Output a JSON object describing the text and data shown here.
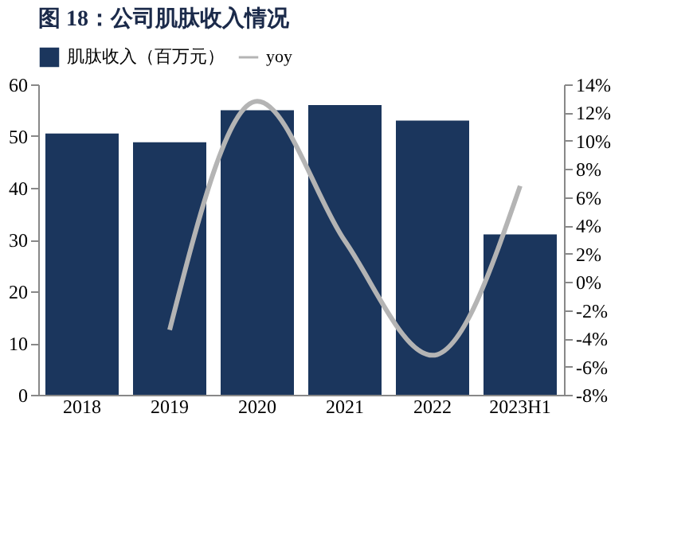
{
  "chart_data": {
    "type": "bar",
    "title": "图 18：公司肌肽收入情况",
    "categories": [
      "2018",
      "2019",
      "2020",
      "2021",
      "2022",
      "2023H1"
    ],
    "series": [
      {
        "name": "肌肽收入（百万元）",
        "color": "#1b365d",
        "values": [
          50.5,
          48.8,
          55,
          56,
          53,
          31
        ]
      },
      {
        "name": "yoy",
        "type": "line",
        "axis": "y2",
        "color": "#b4b4b4",
        "values": [
          null,
          -3.4,
          12.8,
          2.9,
          -5.2,
          6.8
        ]
      }
    ],
    "ylim": [
      0,
      60
    ],
    "yticks": [
      0,
      10,
      20,
      30,
      40,
      50,
      60
    ],
    "y2lim": [
      -8,
      14
    ],
    "y2ticks": [
      {
        "value": -8,
        "label": "-8%"
      },
      {
        "value": -6,
        "label": "-6%"
      },
      {
        "value": -4,
        "label": "-4%"
      },
      {
        "value": -2,
        "label": "-2%"
      },
      {
        "value": 0,
        "label": "0%"
      },
      {
        "value": 2,
        "label": "2%"
      },
      {
        "value": 4,
        "label": "4%"
      },
      {
        "value": 6,
        "label": "6%"
      },
      {
        "value": 8,
        "label": "8%"
      },
      {
        "value": 10,
        "label": "10%"
      },
      {
        "value": 12,
        "label": "12%"
      },
      {
        "value": 14,
        "label": "14%"
      }
    ],
    "legend": "top",
    "marker": "none",
    "line_style": "solid"
  }
}
